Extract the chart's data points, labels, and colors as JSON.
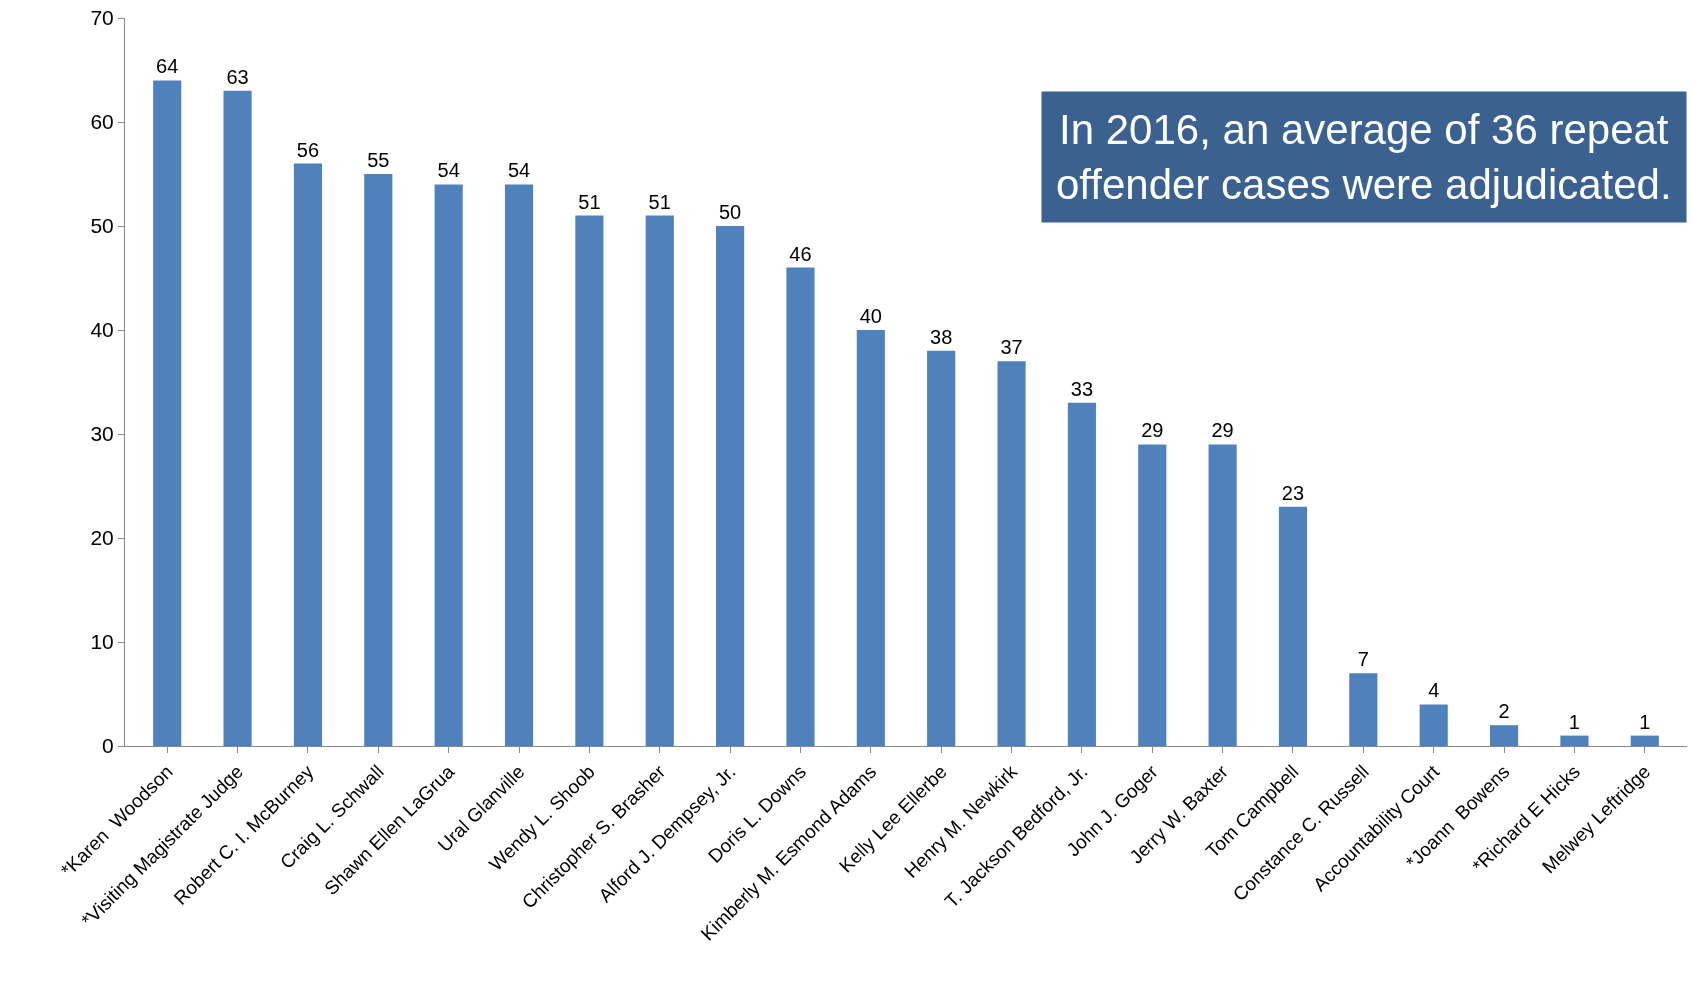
{
  "chart_data": {
    "type": "bar",
    "categories": [
      "*Karen  Woodson",
      "*Visiting Magistrate Judge",
      "Robert C. I. McBurney",
      "Craig L. Schwall",
      "Shawn Ellen LaGrua",
      "Ural Glanville",
      "Wendy L. Shoob",
      "Christopher S. Brasher",
      "Alford J. Dempsey, Jr.",
      "Doris L. Downs",
      "Kimberly M. Esmond Adams",
      "Kelly Lee Ellerbe",
      "Henry M. Newkirk",
      "T. Jackson Bedford, Jr.",
      "John J. Goger",
      "Jerry W. Baxter",
      "Tom Campbell",
      "Constance C. Russell",
      "Accountability Court",
      "*Joann  Bowens",
      "*Richard E Hicks",
      "Melwey Leftridge"
    ],
    "values": [
      64,
      63,
      56,
      55,
      54,
      54,
      51,
      51,
      50,
      46,
      40,
      38,
      37,
      33,
      29,
      29,
      23,
      7,
      4,
      2,
      1,
      1
    ],
    "color": "#4f81bd",
    "ylim": [
      0,
      70
    ],
    "yticks": [
      0,
      10,
      20,
      30,
      40,
      50,
      60,
      70
    ],
    "grid": false,
    "data_labels": true,
    "annotations": [
      "In 2016, an average of 36 repeat offender cases were adjudicated."
    ]
  }
}
